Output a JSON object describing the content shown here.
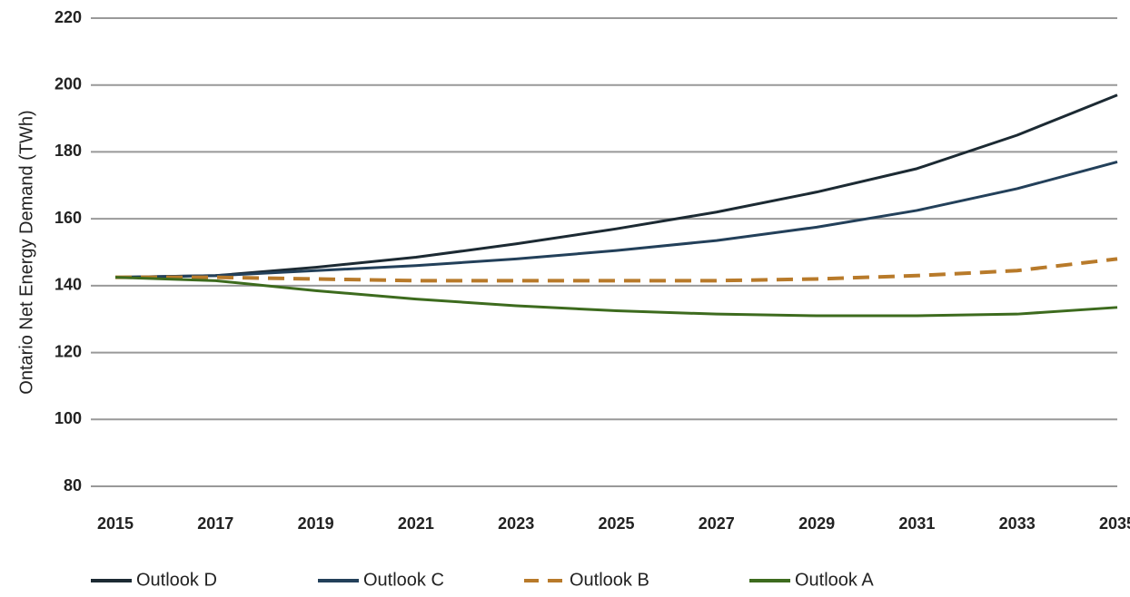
{
  "chart_data": {
    "type": "line",
    "y_label": "Ontario Net Energy Demand (TWh)",
    "x": [
      2015,
      2017,
      2019,
      2021,
      2023,
      2025,
      2027,
      2029,
      2031,
      2033,
      2035
    ],
    "xlim": [
      2015,
      2035
    ],
    "xticks": [
      2015,
      2017,
      2019,
      2021,
      2023,
      2025,
      2027,
      2029,
      2031,
      2033,
      2035
    ],
    "ylim": [
      80,
      220
    ],
    "yticks": [
      80,
      100,
      120,
      140,
      160,
      180,
      200,
      220
    ],
    "grid": true,
    "legend": "bottom",
    "series": [
      {
        "name": "Outlook D",
        "color": "#1c2a33",
        "dashed": false,
        "values": [
          142.5,
          143,
          145.5,
          148.5,
          152.5,
          157,
          162,
          168,
          175,
          185,
          197
        ]
      },
      {
        "name": "Outlook C",
        "color": "#23405a",
        "dashed": false,
        "values": [
          142.5,
          143,
          144.5,
          146,
          148,
          150.5,
          153.5,
          157.5,
          162.5,
          169,
          177
        ]
      },
      {
        "name": "Outlook B",
        "color": "#b87a2a",
        "dashed": true,
        "values": [
          142.5,
          142.5,
          142,
          141.5,
          141.5,
          141.5,
          141.5,
          142,
          143,
          144.5,
          148
        ]
      },
      {
        "name": "Outlook A",
        "color": "#3d6b1e",
        "dashed": false,
        "values": [
          142.5,
          141.5,
          138.5,
          136,
          134,
          132.5,
          131.5,
          131,
          131,
          131.5,
          133.5
        ]
      }
    ]
  }
}
